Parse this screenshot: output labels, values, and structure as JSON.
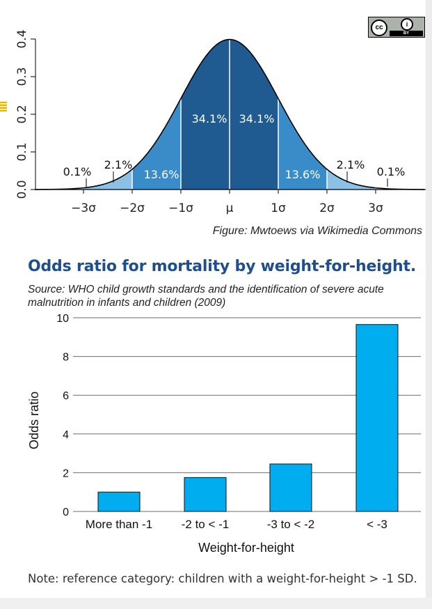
{
  "license_badge": {
    "cc": "cc",
    "by_icon": "person-icon",
    "by": "BY"
  },
  "caption": "Figure: Mwtoews via Wikimedia Commons",
  "odds_title": "Odds ratio for mortality by weight-for-height.",
  "odds_source": "Source: WHO child growth standards and the identification of severe acute malnutrition in infants and children (2009)",
  "note": "Note: reference category: children with a weight-for-height > -1 SD.",
  "colors": {
    "dark": "#1f5a90",
    "mid": "#3a8cc8",
    "light": "#8cc0e4",
    "lightest": "#bcdcf0",
    "bar": "#00aeef",
    "title": "#1f4e8c"
  },
  "chart_data": [
    {
      "type": "area",
      "title": "",
      "xlabel": "",
      "ylabel": "",
      "ylim": [
        0,
        0.4
      ],
      "xlim": [
        -4,
        4
      ],
      "yticks": [
        "0.0",
        "0.1",
        "0.2",
        "0.3",
        "0.4"
      ],
      "xticks": [
        "−3σ",
        "−2σ",
        "−1σ",
        "μ",
        "1σ",
        "2σ",
        "3σ"
      ],
      "regions": [
        {
          "from": -3,
          "to": -2,
          "label": "2.1%"
        },
        {
          "from": -2,
          "to": -1,
          "label": "13.6%"
        },
        {
          "from": -1,
          "to": 0,
          "label": "34.1%"
        },
        {
          "from": 0,
          "to": 1,
          "label": "34.1%"
        },
        {
          "from": 1,
          "to": 2,
          "label": "13.6%"
        },
        {
          "from": 2,
          "to": 3,
          "label": "2.1%"
        }
      ],
      "tail_labels": [
        "0.1%",
        "0.1%"
      ],
      "grid": false
    },
    {
      "type": "bar",
      "title": "",
      "categories": [
        "More than -1",
        "-2 to < -1",
        "-3 to < -2",
        "< -3"
      ],
      "values": [
        1.0,
        1.75,
        2.45,
        9.65
      ],
      "xlabel": "Weight-for-height",
      "ylabel": "Odds ratio",
      "ylim": [
        0,
        10
      ],
      "yticks": [
        "0",
        "2",
        "4",
        "6",
        "8",
        "10"
      ],
      "grid": true
    }
  ]
}
